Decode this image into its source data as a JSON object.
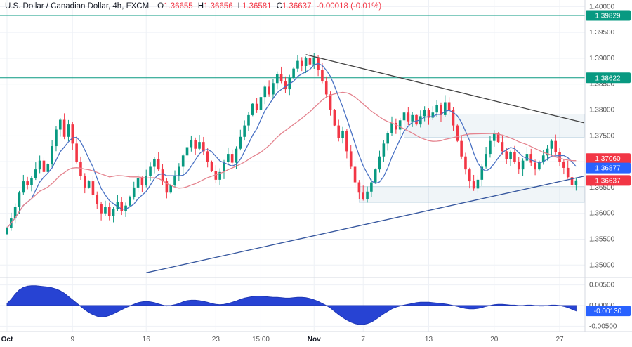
{
  "legend": {
    "title": "U.S. Dollar / Canadian Dollar, 4h, FXCM",
    "o_label": "O",
    "o_value": "1.36655",
    "h_label": "H",
    "h_value": "1.36656",
    "l_label": "L",
    "l_value": "1.36581",
    "c_label": "C",
    "c_value": "1.36637",
    "change": "-0.00018 (-0.01%)"
  },
  "colors": {
    "up": "#089981",
    "down": "#f23645",
    "background": "#ffffff",
    "grid": "#eef1f6",
    "axis_text": "#555555",
    "separator": "#d6d9e0",
    "ma_fast": "#4a72c4",
    "ma_slow": "#e4838e",
    "indicator_fill": "#2743d3",
    "indicator_stroke": "#1f37b5",
    "level": "#089981",
    "zone_fill": "rgba(110,160,190,0.10)",
    "zone_stroke": "rgba(110,160,190,0.35)",
    "badge_text": "#ffffff"
  },
  "chart_data": {
    "type": "candlestick",
    "title": "U.S. Dollar / Canadian Dollar, 4h, FXCM",
    "symbol": "USD/CAD",
    "timeframe": "4h",
    "exchange": "FXCM",
    "y_range": [
      1.348,
      1.401
    ],
    "price_ticks": [
      "1.40000",
      "1.39500",
      "1.39000",
      "1.38500",
      "1.38000",
      "1.37500",
      "1.37000",
      "1.36500",
      "1.36000",
      "1.35500",
      "1.35000"
    ],
    "time_ticks": [
      {
        "label": "Oct",
        "index": 0,
        "major": true
      },
      {
        "label": "9",
        "index": 16,
        "major": false
      },
      {
        "label": "16",
        "index": 34,
        "major": false
      },
      {
        "label": "23",
        "index": 51,
        "major": false
      },
      {
        "label": "15:00",
        "index": 62,
        "major": false
      },
      {
        "label": "Nov",
        "index": 75,
        "major": true
      },
      {
        "label": "7",
        "index": 87,
        "major": false
      },
      {
        "label": "13",
        "index": 103,
        "major": false
      },
      {
        "label": "20",
        "index": 119,
        "major": false
      },
      {
        "label": "27",
        "index": 135,
        "major": false
      }
    ],
    "closes": [
      1.3572,
      1.359,
      1.3612,
      1.364,
      1.3662,
      1.3655,
      1.3668,
      1.3685,
      1.3702,
      1.368,
      1.3695,
      1.373,
      1.3762,
      1.3781,
      1.3748,
      1.3772,
      1.3735,
      1.37,
      1.3672,
      1.365,
      1.3662,
      1.3635,
      1.3618,
      1.36,
      1.3612,
      1.3595,
      1.3608,
      1.3622,
      1.3604,
      1.3615,
      1.3632,
      1.365,
      1.3668,
      1.3655,
      1.3672,
      1.369,
      1.3705,
      1.3685,
      1.3662,
      1.364,
      1.3655,
      1.3672,
      1.369,
      1.3712,
      1.3728,
      1.3742,
      1.3725,
      1.3738,
      1.372,
      1.37,
      1.3682,
      1.3665,
      1.368,
      1.37,
      1.3715,
      1.3698,
      1.3725,
      1.3748,
      1.377,
      1.379,
      1.3812,
      1.38,
      1.3825,
      1.3845,
      1.383,
      1.3852,
      1.387,
      1.3855,
      1.384,
      1.3862,
      1.388,
      1.3895,
      1.3885,
      1.39,
      1.3888,
      1.3902,
      1.3878,
      1.3855,
      1.383,
      1.38,
      1.377,
      1.3745,
      1.376,
      1.372,
      1.369,
      1.366,
      1.364,
      1.3628,
      1.3642,
      1.366,
      1.3685,
      1.371,
      1.3735,
      1.3755,
      1.3775,
      1.3762,
      1.378,
      1.3795,
      1.3778,
      1.379,
      1.3772,
      1.3788,
      1.38,
      1.3785,
      1.3795,
      1.381,
      1.379,
      1.3815,
      1.38,
      1.377,
      1.374,
      1.371,
      1.3685,
      1.3662,
      1.3648,
      1.3665,
      1.369,
      1.3715,
      1.374,
      1.3755,
      1.3738,
      1.372,
      1.3705,
      1.3718,
      1.37,
      1.3685,
      1.3702,
      1.3715,
      1.3698,
      1.3685,
      1.37,
      1.3712,
      1.3725,
      1.374,
      1.3718,
      1.37,
      1.3688,
      1.367,
      1.3655,
      1.36637
    ],
    "ma_fast": {
      "period": 7
    },
    "ma_slow": {
      "period": 26
    },
    "levels": [
      {
        "value": 1.39829,
        "color": "#089981"
      },
      {
        "value": 1.38622,
        "color": "#089981"
      }
    ],
    "trendlines": [
      {
        "name": "descending-resistance",
        "from": [
          73,
          1.3907
        ],
        "to": [
          141,
          1.3775
        ],
        "color": "#424242"
      },
      {
        "name": "ascending-support",
        "from": [
          34,
          1.3485
        ],
        "to": [
          141,
          1.3672
        ],
        "color": "#35569e"
      }
    ],
    "zones": [
      {
        "from": 97,
        "to": 141,
        "top": 1.3792,
        "bottom": 1.3747
      },
      {
        "from": 86,
        "to": 141,
        "top": 1.3652,
        "bottom": 1.3621
      }
    ],
    "indicator": {
      "type": "area",
      "scale": 0.001,
      "range": [
        -0.0063,
        0.0063
      ],
      "ticks": [
        "0.00500",
        "0.00000",
        "-0.00500"
      ],
      "values": [
        0.5,
        1.5,
        2.8,
        3.8,
        4.4,
        4.7,
        4.8,
        4.8,
        4.7,
        4.6,
        4.5,
        4.3,
        4.0,
        3.6,
        3.0,
        2.2,
        1.4,
        0.6,
        -0.2,
        -1.0,
        -1.7,
        -2.2,
        -2.6,
        -2.8,
        -2.7,
        -2.4,
        -2.0,
        -1.5,
        -1.0,
        -0.5,
        -0.1,
        0.3,
        0.7,
        0.9,
        1.0,
        0.9,
        0.7,
        0.4,
        0.1,
        -0.1,
        0.0,
        0.2,
        0.5,
        0.9,
        1.2,
        1.3,
        1.3,
        1.2,
        1.0,
        0.8,
        0.5,
        0.3,
        0.2,
        0.3,
        0.5,
        0.8,
        1.1,
        1.5,
        1.8,
        2.0,
        2.2,
        2.3,
        2.3,
        2.2,
        2.1,
        2.0,
        2.0,
        1.9,
        1.8,
        1.8,
        1.9,
        2.0,
        2.0,
        1.9,
        1.7,
        1.4,
        1.0,
        0.5,
        0.0,
        -0.6,
        -1.4,
        -2.2,
        -2.9,
        -3.5,
        -4.0,
        -4.4,
        -4.6,
        -4.6,
        -4.4,
        -4.0,
        -3.4,
        -2.7,
        -2.0,
        -1.4,
        -0.8,
        -0.4,
        -0.1,
        0.1,
        0.3,
        0.5,
        0.7,
        0.8,
        0.8,
        0.8,
        0.7,
        0.6,
        0.5,
        0.4,
        0.2,
        0.0,
        -0.2,
        -0.5,
        -0.7,
        -0.8,
        -0.8,
        -0.7,
        -0.5,
        -0.2,
        0.0,
        0.2,
        0.3,
        0.3,
        0.2,
        0.1,
        0.1,
        0.0,
        0.0,
        0.1,
        0.1,
        0.0,
        -0.1,
        -0.1,
        0.0,
        0.1,
        0.1,
        0.0,
        -0.2,
        -0.5,
        -0.9,
        -1.3
      ]
    },
    "price_labels": [
      {
        "text": "1.39829",
        "value": 1.39829,
        "pane": "main",
        "color": "#089981"
      },
      {
        "text": "1.38622",
        "value": 1.38622,
        "pane": "main",
        "color": "#089981"
      },
      {
        "text": "1.37060",
        "value": 1.3706,
        "pane": "main",
        "color": "#f23645"
      },
      {
        "text": "1.36877",
        "value": 1.36877,
        "pane": "main",
        "color": "#2962ff"
      },
      {
        "text": "1.36637",
        "value": 1.36637,
        "pane": "main",
        "color": "#f23645"
      },
      {
        "text": "-0.00130",
        "value": -0.0013,
        "pane": "indicator",
        "color": "#2962ff"
      }
    ]
  }
}
